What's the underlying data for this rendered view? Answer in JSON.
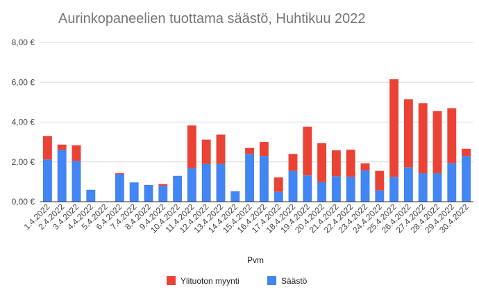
{
  "chart_data": {
    "type": "bar",
    "stacked": true,
    "title": "Aurinkopaneelien tuottama säästö, Huhtikuu 2022",
    "xlabel": "Pvm",
    "ylabel": "",
    "ylim": [
      0,
      8
    ],
    "y_ticks": [
      "0,00 €",
      "2,00 €",
      "4,00 €",
      "6,00 €",
      "8,00 €"
    ],
    "y_tick_values": [
      0,
      2,
      4,
      6,
      8
    ],
    "grid": true,
    "legend_position": "bottom",
    "categories": [
      "1.4.2022",
      "2.4.2022",
      "3.4.2022",
      "4.4.2022",
      "5.4.2022",
      "6.4.2022",
      "7.4.2022",
      "8.4.2022",
      "9.4.2022",
      "10.4.2022",
      "11.4.2022",
      "12.4.2022",
      "13.4.2022",
      "14.4.2022",
      "15.4.2022",
      "16.4.2022",
      "17.4.2022",
      "18.4.2022",
      "19.4.2022",
      "20.4.2022",
      "21.4.2022",
      "22.4.2022",
      "23.4.2022",
      "24.4.2022",
      "25.4.2022",
      "26.4.2022",
      "27.4.2022",
      "28.4.2022",
      "29.4.2022",
      "30.4.2022"
    ],
    "series": [
      {
        "name": "Säästö",
        "color": "#4285f4",
        "values": [
          2.12,
          2.6,
          2.05,
          0.6,
          0,
          1.38,
          0.97,
          0.84,
          0.8,
          1.3,
          1.68,
          1.9,
          1.9,
          0.52,
          2.4,
          2.3,
          0.5,
          1.55,
          1.32,
          0.98,
          1.28,
          1.26,
          1.57,
          0.57,
          1.25,
          1.72,
          1.43,
          1.43,
          1.93,
          2.3
        ]
      },
      {
        "name": "Ylituoton myynti",
        "color": "#ea4335",
        "values": [
          1.18,
          0.27,
          0.78,
          0,
          0,
          0.05,
          0,
          0,
          0.09,
          0,
          2.15,
          1.22,
          1.47,
          0,
          0.3,
          0.7,
          0.72,
          0.85,
          2.45,
          1.96,
          1.3,
          1.35,
          0.36,
          0.98,
          4.9,
          3.43,
          3.52,
          3.12,
          2.77,
          0.36
        ]
      }
    ]
  }
}
